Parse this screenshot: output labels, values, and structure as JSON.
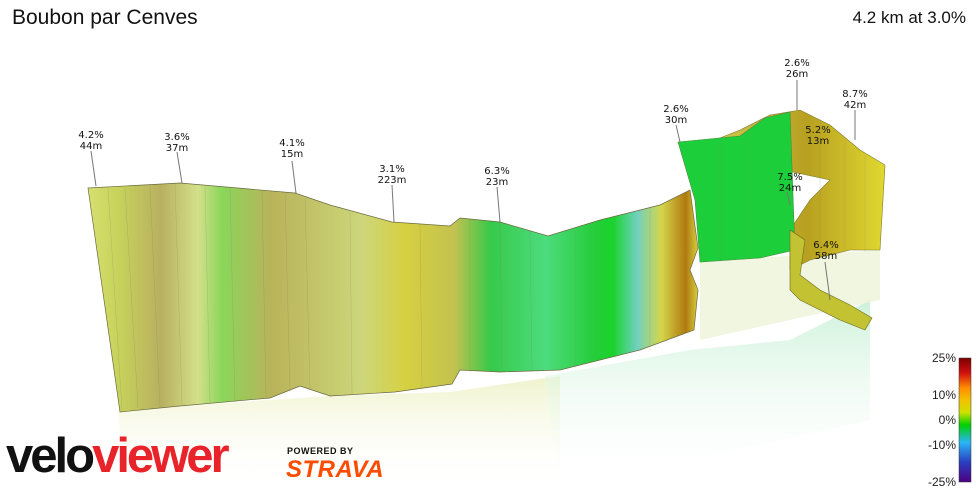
{
  "header": {
    "title": "Boubon par Cenves",
    "summary": "4.2 km at 3.0%"
  },
  "colors": {
    "gradient_stops": [
      "#4b0082",
      "#2a3fbf",
      "#29b6f6",
      "#00d000",
      "#cfe000",
      "#f2c200",
      "#ff8c00",
      "#d01010",
      "#7a0000"
    ],
    "grade_mid_yellow": "#c8cc5a",
    "grade_green": "#2ecc40",
    "strava_orange": "#fc4c02",
    "veloviewer_red": "#e8232a"
  },
  "branding": {
    "logo_a": "velo",
    "logo_b": "viewer",
    "powered_by": "POWERED BY",
    "strava": "STRAVA"
  },
  "chart_data": {
    "type": "area",
    "description_kind": "3D elevation profile with gradient-coloured segments",
    "segments": [
      {
        "gradient": "4.2%",
        "length": "44m"
      },
      {
        "gradient": "3.6%",
        "length": "37m"
      },
      {
        "gradient": "4.1%",
        "length": "15m"
      },
      {
        "gradient": "3.1%",
        "length": "223m"
      },
      {
        "gradient": "6.3%",
        "length": "23m"
      },
      {
        "gradient": "2.6%",
        "length": "30m"
      },
      {
        "gradient": "2.6%",
        "length": "26m"
      },
      {
        "gradient": "8.7%",
        "length": "42m"
      },
      {
        "gradient": "5.2%",
        "length": "13m"
      },
      {
        "gradient": "7.5%",
        "length": "24m"
      },
      {
        "gradient": "6.4%",
        "length": "58m"
      }
    ],
    "legend": {
      "labels": [
        "25%",
        "10%",
        "0%",
        "-10%",
        "-25%"
      ],
      "values": [
        25,
        10,
        0,
        -10,
        -25
      ]
    }
  }
}
